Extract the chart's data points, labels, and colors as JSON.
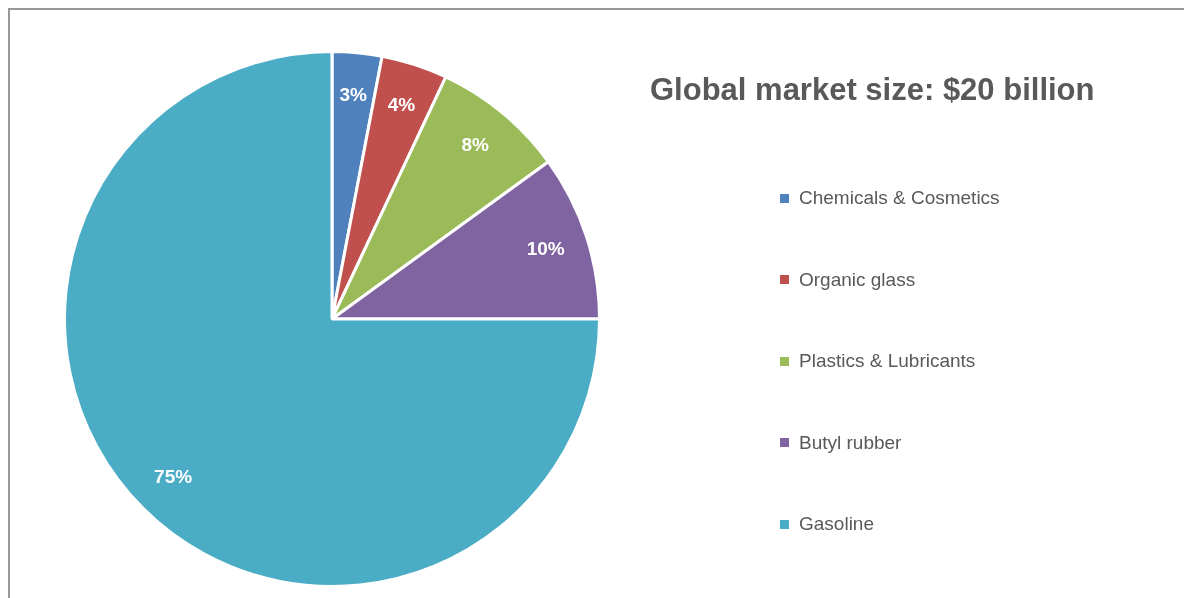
{
  "chart_data": {
    "type": "pie",
    "title": "Global market size: $20 billion",
    "categories": [
      "Chemicals & Cosmetics",
      "Organic glass",
      "Plastics & Lubricants",
      "Butyl rubber",
      "Gasoline"
    ],
    "values": [
      3,
      4,
      8,
      10,
      75
    ],
    "colors": [
      "#4f81bd",
      "#c0504d",
      "#9bbb59",
      "#8064a2",
      "#4bacc6"
    ],
    "value_labels": [
      "3%",
      "4%",
      "8%",
      "10%",
      "75%"
    ],
    "legend": "right"
  }
}
